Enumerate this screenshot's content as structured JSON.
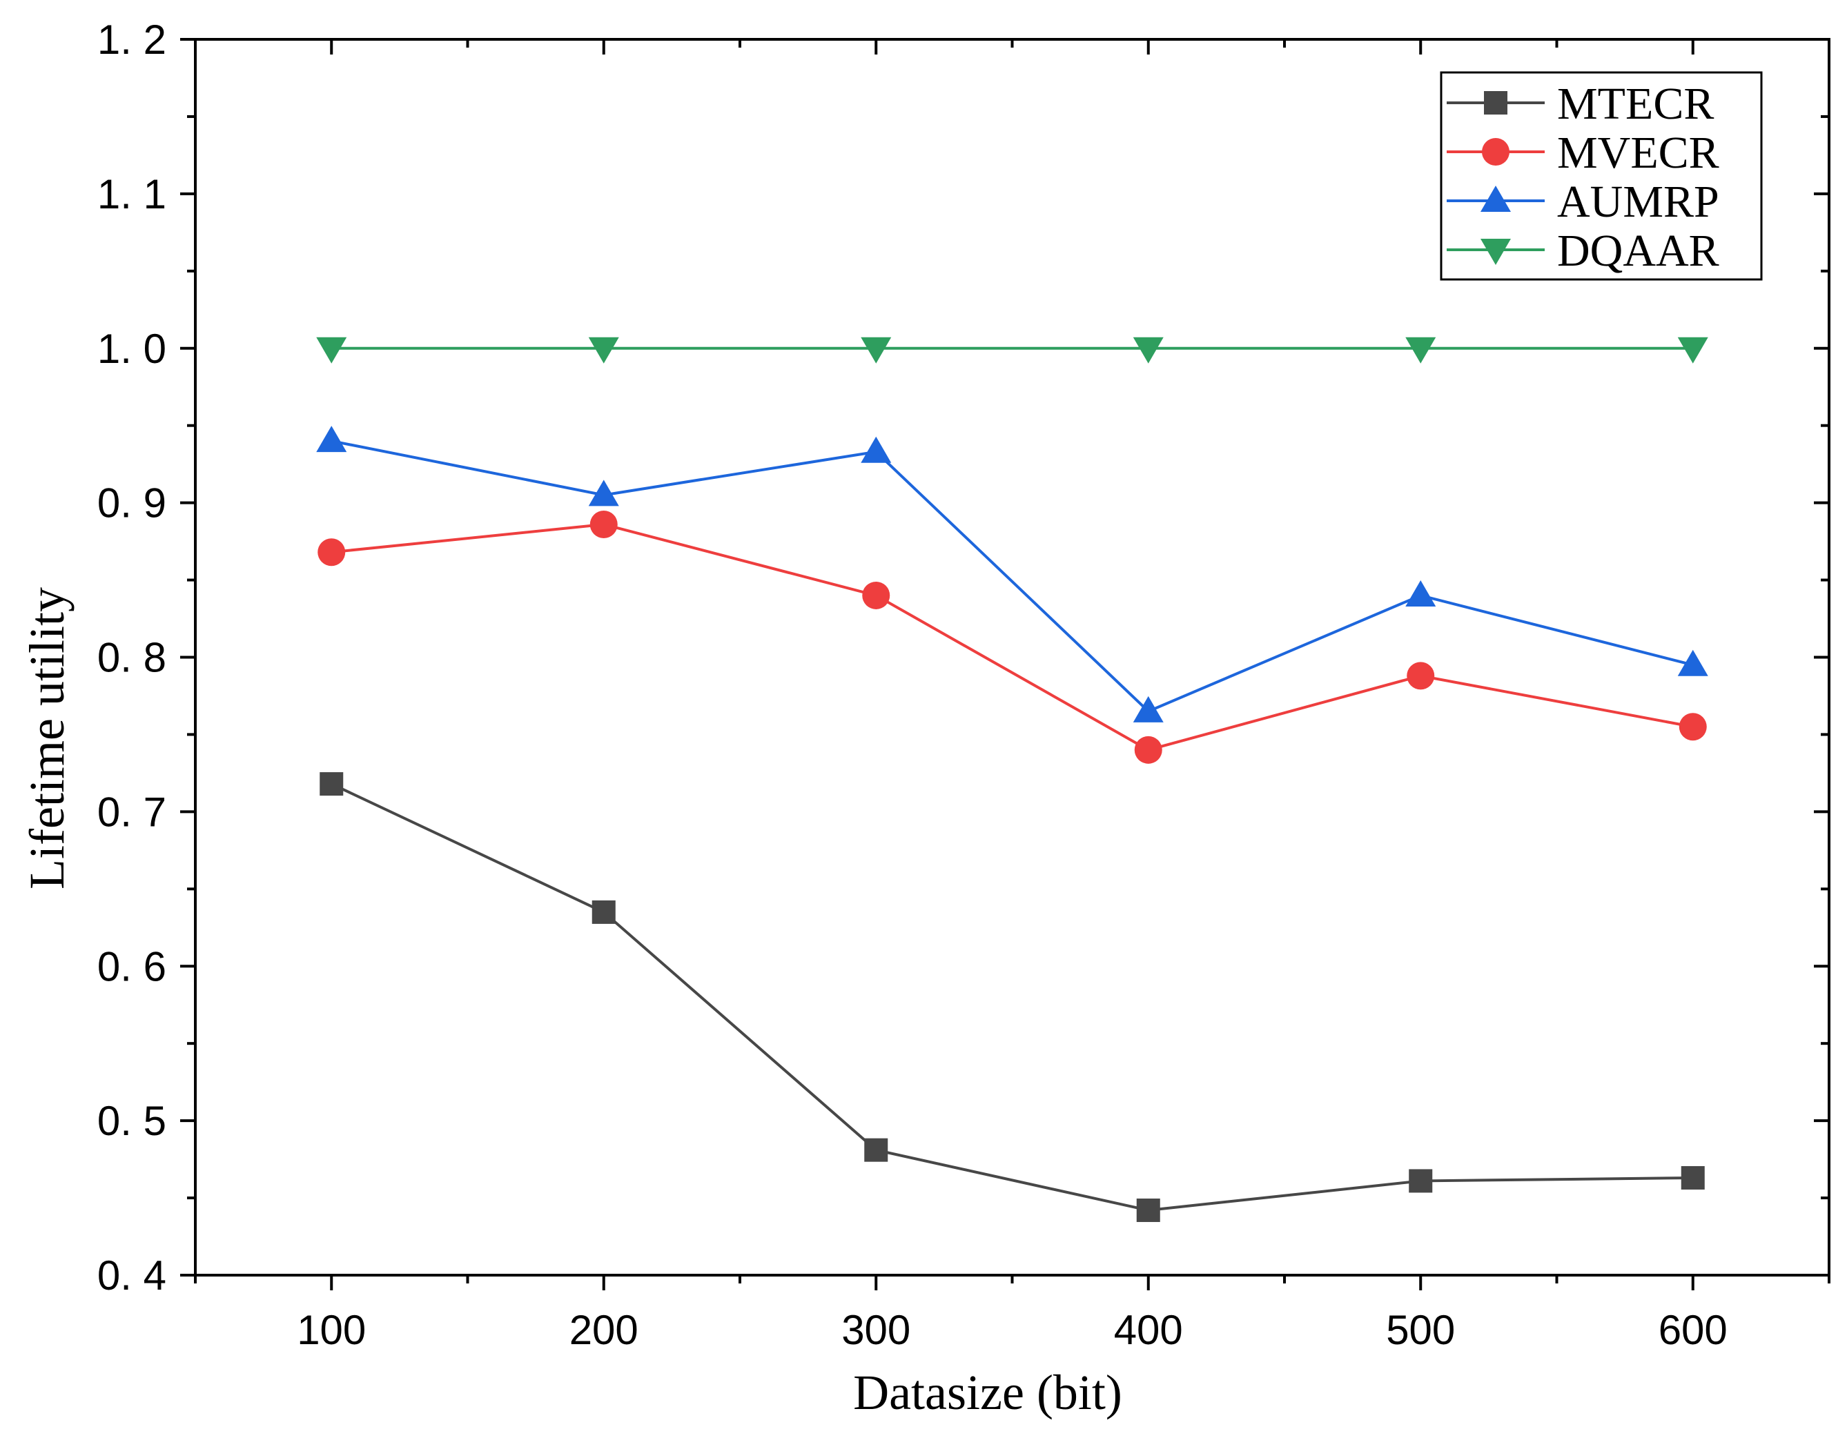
{
  "chart_data": {
    "type": "line",
    "title": "",
    "xlabel": "Datasize (bit)",
    "ylabel": "Lifetime  utility",
    "x": [
      100,
      200,
      300,
      400,
      500,
      600
    ],
    "xlim": [
      50,
      650
    ],
    "ylim": [
      0.4,
      1.2
    ],
    "xticks": [
      100,
      200,
      300,
      400,
      500,
      600
    ],
    "xtick_labels": [
      "100",
      "200",
      "300",
      "400",
      "500",
      "600"
    ],
    "yticks": [
      0.4,
      0.5,
      0.6,
      0.7,
      0.8,
      0.9,
      1.0,
      1.1,
      1.2
    ],
    "ytick_labels": [
      "0. 4",
      "0. 5",
      "0. 6",
      "0. 7",
      "0. 8",
      "0. 9",
      "1. 0",
      "1. 1",
      "1. 2"
    ],
    "grid": false,
    "legend_position": "top-right",
    "series": [
      {
        "name": "MTECR",
        "marker": "square",
        "color": "#474747",
        "values": [
          0.718,
          0.635,
          0.481,
          0.442,
          0.461,
          0.463
        ]
      },
      {
        "name": "MVECR",
        "marker": "circle",
        "color": "#ee3e3e",
        "values": [
          0.868,
          0.886,
          0.84,
          0.74,
          0.788,
          0.755
        ]
      },
      {
        "name": "AUMRP",
        "marker": "triangle-up",
        "color": "#1d66dc",
        "values": [
          0.94,
          0.905,
          0.933,
          0.765,
          0.84,
          0.795
        ]
      },
      {
        "name": "DQAAR",
        "marker": "triangle-down",
        "color": "#2e9e5e",
        "values": [
          1.0,
          1.0,
          1.0,
          1.0,
          1.0,
          1.0
        ]
      }
    ]
  }
}
